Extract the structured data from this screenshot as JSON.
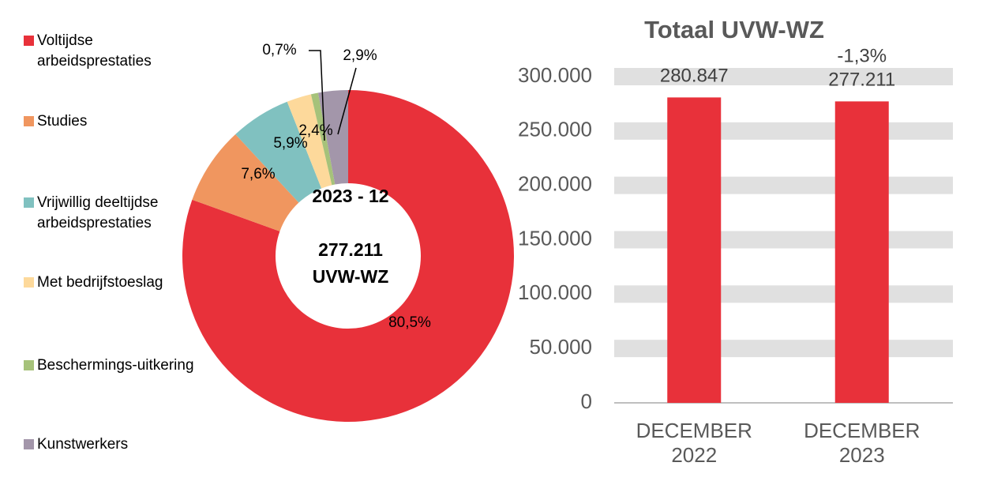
{
  "chart_data": [
    {
      "type": "pie",
      "categories": [
        "Voltijdse arbeidsprestaties",
        "Studies",
        "Vrijwillig deeltijdse arbeidsprestaties",
        "Met bedrijfstoeslag",
        "Beschermings-uitkering",
        "Kunstwerkers"
      ],
      "values": [
        80.5,
        7.6,
        5.9,
        2.4,
        0.7,
        2.9
      ],
      "value_labels": [
        "80,5%",
        "7,6%",
        "5,9%",
        "2,4%",
        "0,7%",
        "2,9%"
      ],
      "colors": [
        "#e8313a",
        "#f0965f",
        "#80c1c0",
        "#fdd99b",
        "#a6c27a",
        "#a396aa"
      ],
      "annotations": [
        "2023 - 12",
        "277.211",
        "UVW-WZ"
      ]
    },
    {
      "type": "bar",
      "title": "Totaal UVW-WZ",
      "categories": [
        "DECEMBER 2022",
        "DECEMBER 2023"
      ],
      "values": [
        280847,
        277211
      ],
      "value_labels": [
        "280.847",
        "277.211"
      ],
      "color": "#e8313a",
      "annotations": [
        "-1,3%"
      ],
      "ylim": [
        0,
        300000
      ],
      "yticks": [
        0,
        {
          "value": 50000,
          "label": "50.000"
        },
        {
          "value": 100000,
          "label": "100.000"
        },
        {
          "value": 150000,
          "label": "150.000"
        },
        {
          "value": 200000,
          "label": "200.000"
        },
        {
          "value": 250000,
          "label": "250.000"
        },
        {
          "value": 300000,
          "label": "300.000"
        }
      ],
      "grid": true
    }
  ]
}
